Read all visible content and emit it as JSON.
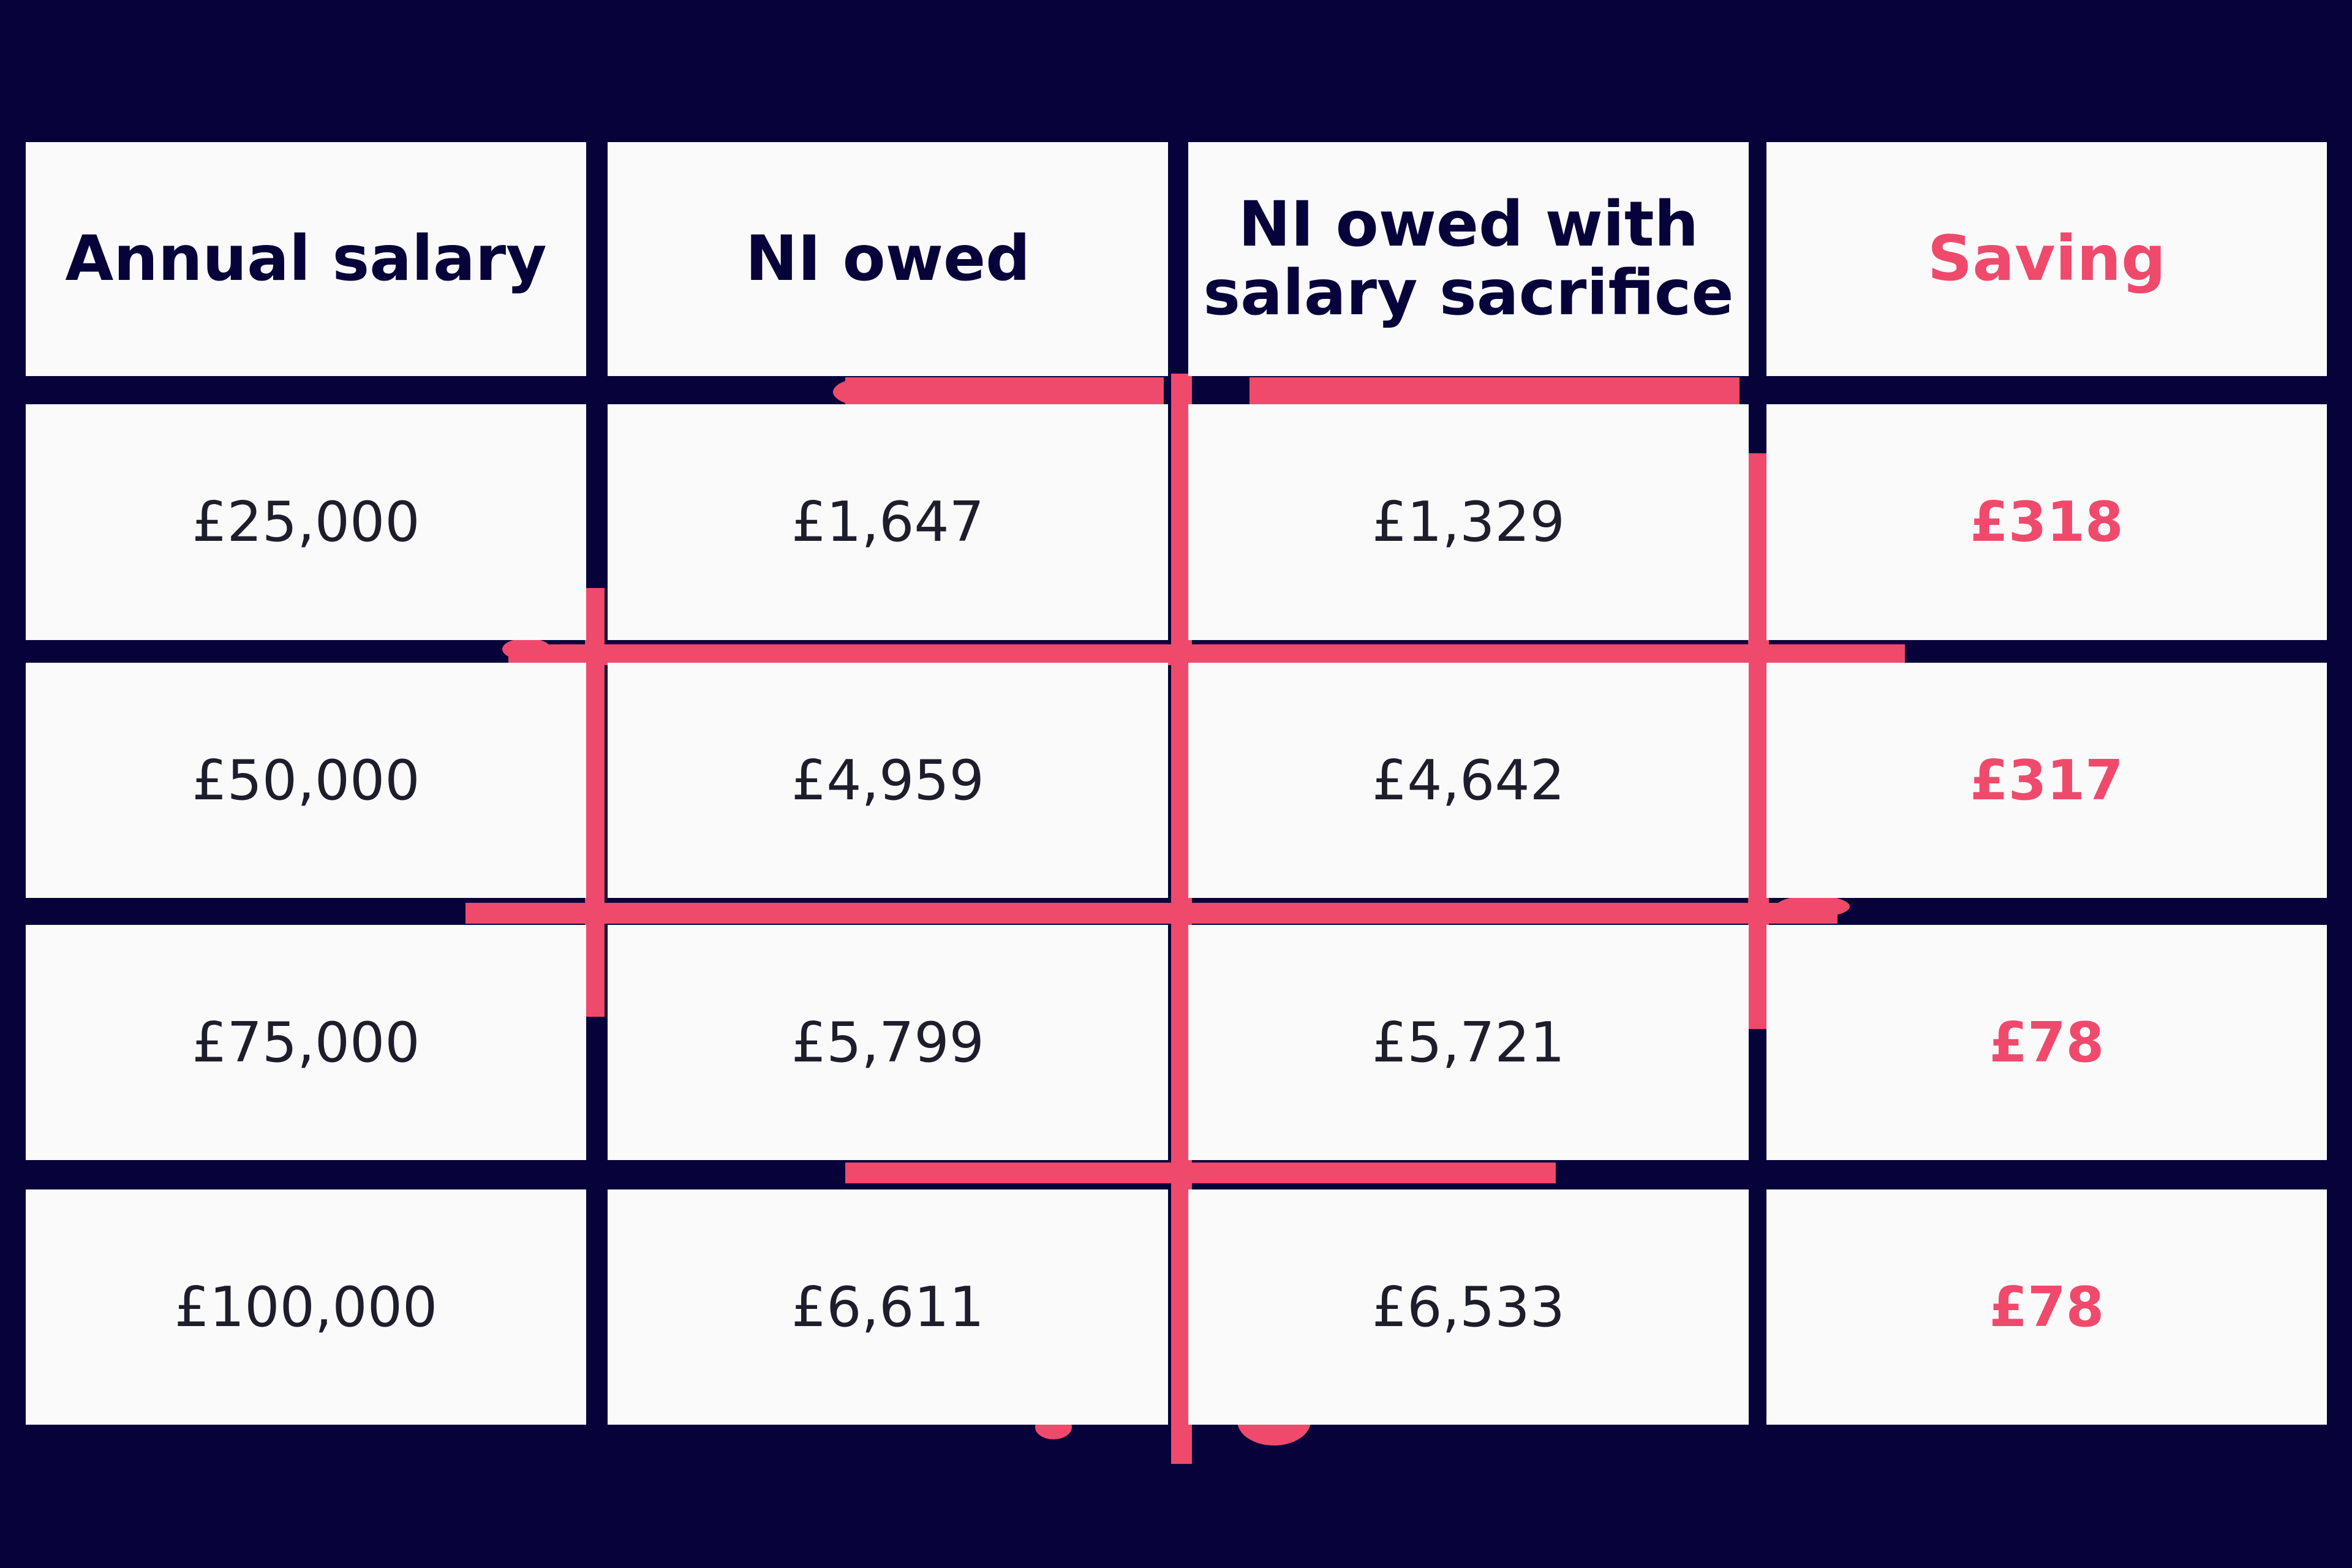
{
  "colors": {
    "background": "#07033a",
    "cell": "#fafafa",
    "header_text": "#07033a",
    "value_text": "#1d1d2b",
    "accent": "#ef4a6c"
  },
  "chart_data": {
    "type": "table",
    "columns": [
      "Annual salary",
      "NI owed",
      "NI owed with salary sacrifice",
      "Saving"
    ],
    "rows": [
      [
        "£25,000",
        "£1,647",
        "£1,329",
        "£318"
      ],
      [
        "£50,000",
        "£4,959",
        "£4,642",
        "£317"
      ],
      [
        "£75,000",
        "£5,799",
        "£5,721",
        "£78"
      ],
      [
        "£100,000",
        "£6,611",
        "£6,533",
        "£78"
      ]
    ],
    "highlight_column": 3
  }
}
